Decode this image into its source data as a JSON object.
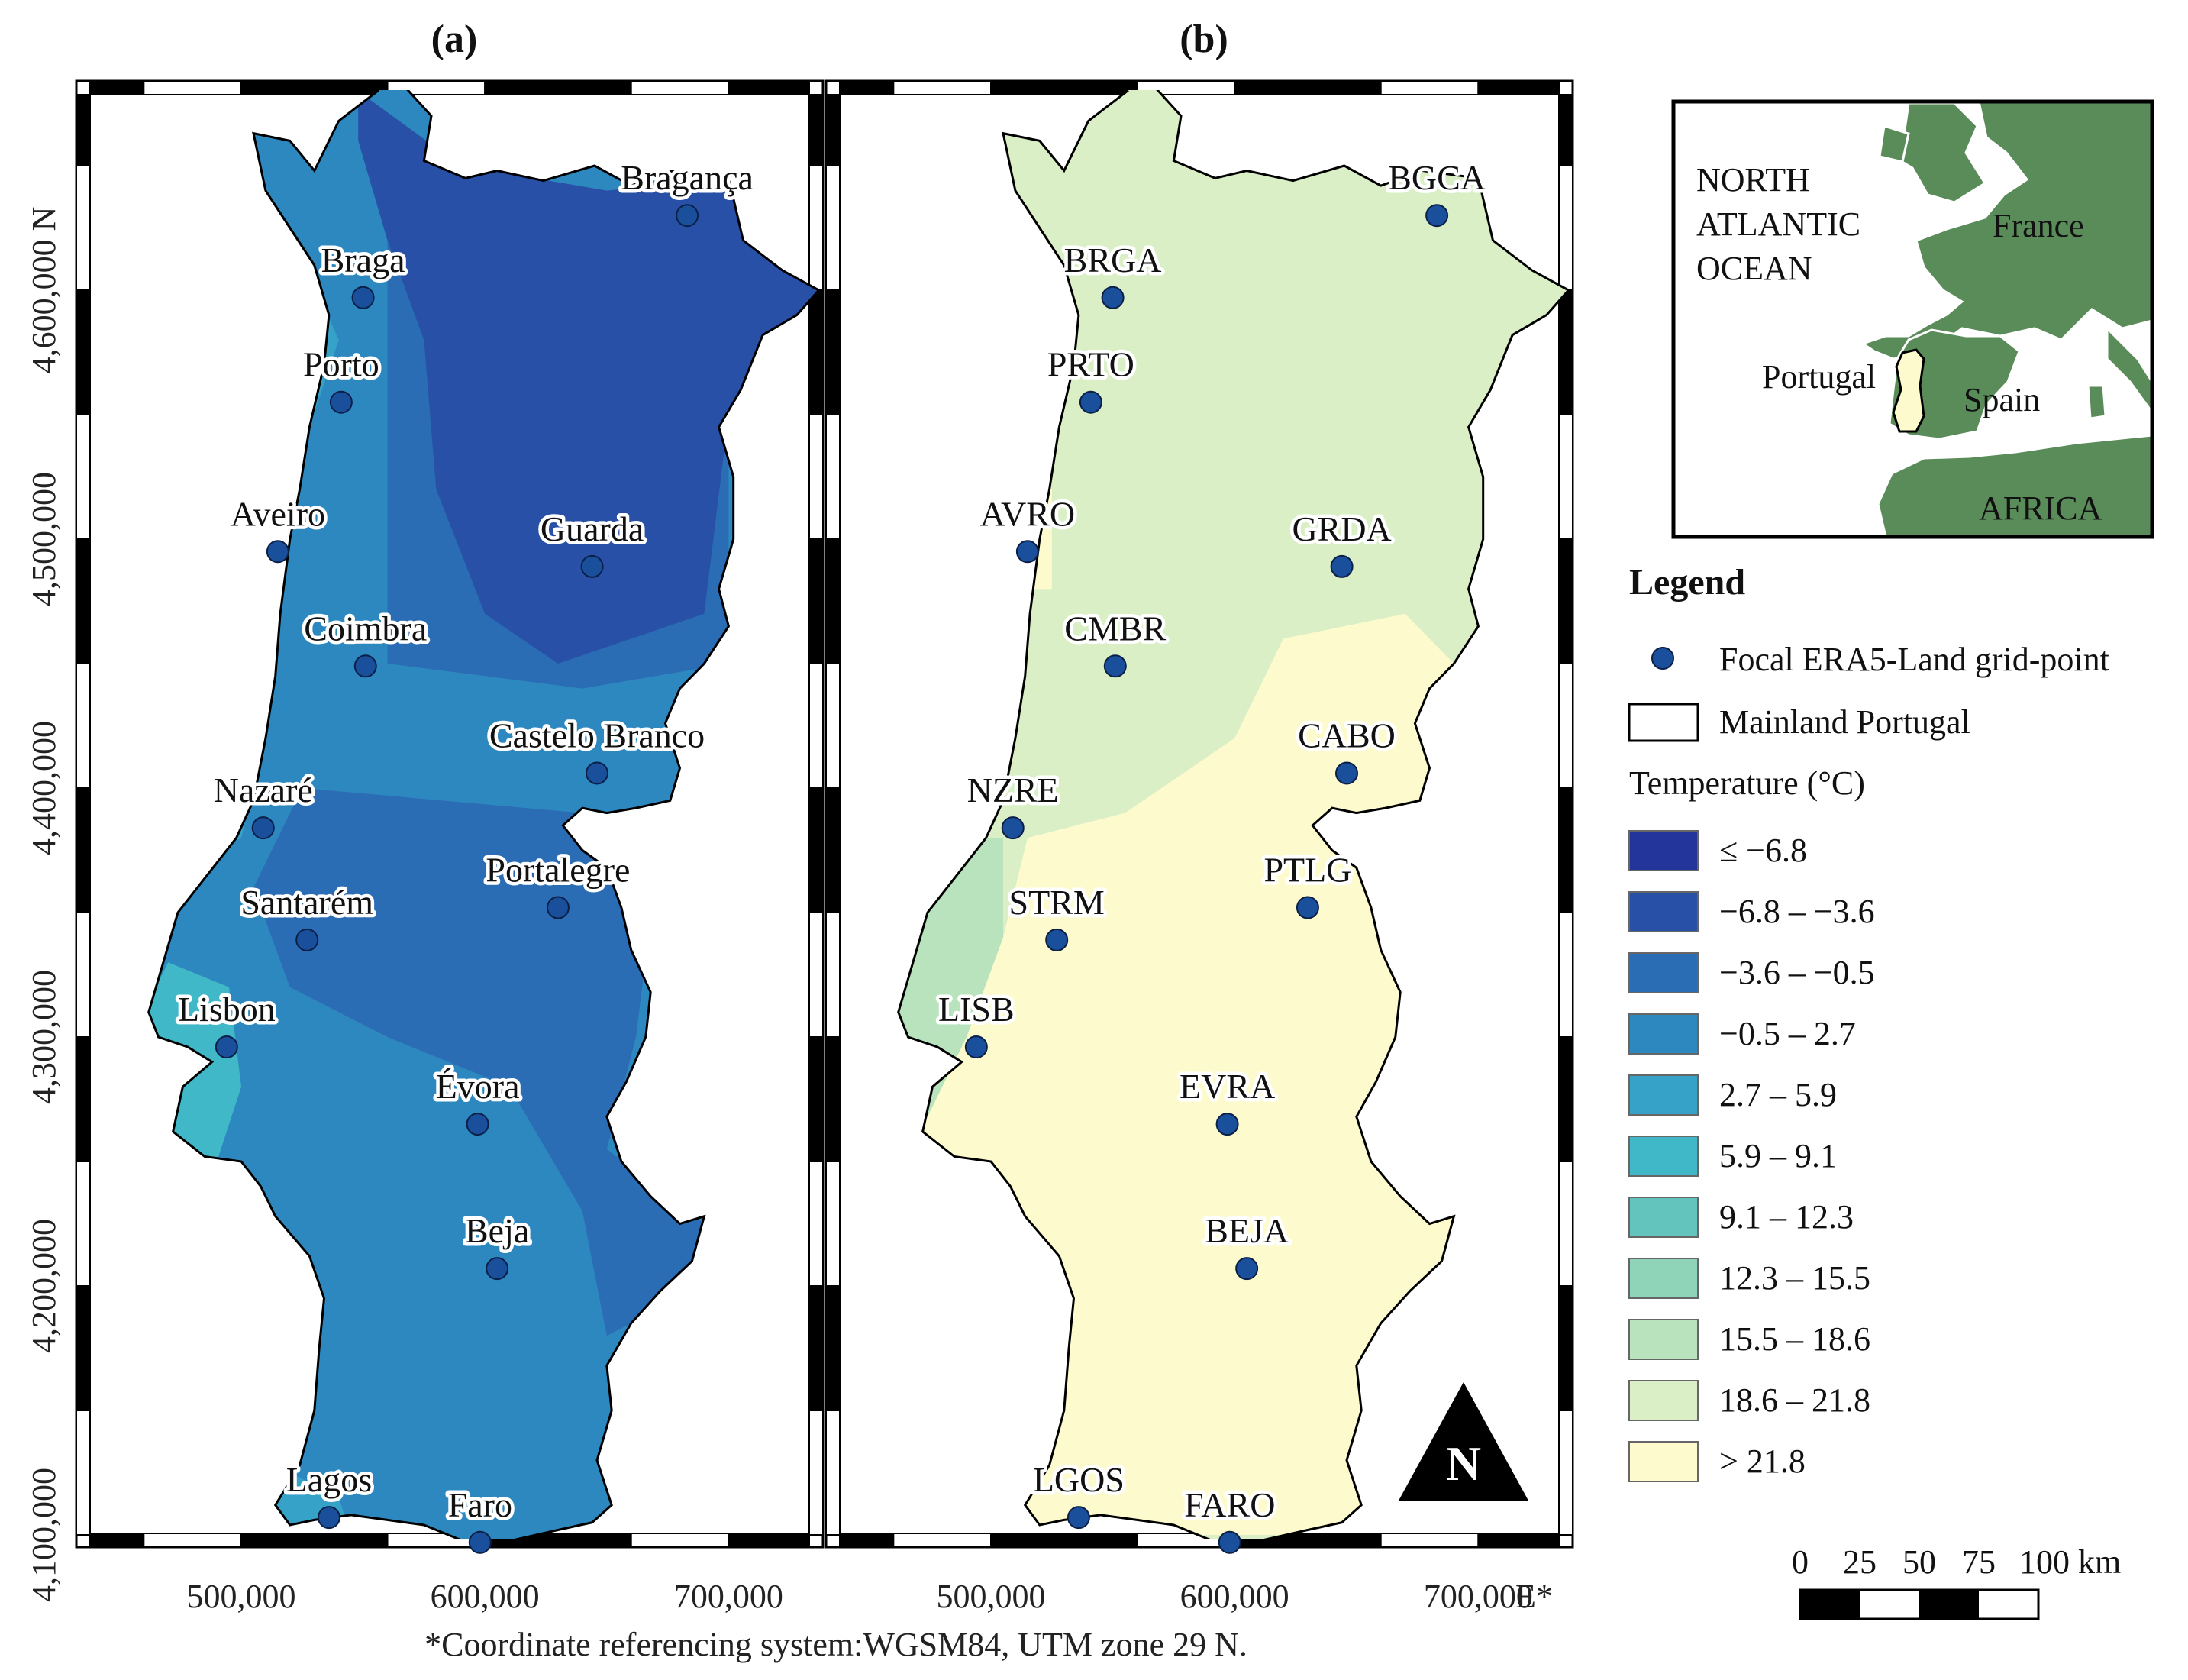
{
  "panels": {
    "a": {
      "title": "(a)",
      "cities": [
        {
          "name": "Bragança",
          "x": 683000,
          "y": 4630000
        },
        {
          "name": "Braga",
          "x": 550000,
          "y": 4597000
        },
        {
          "name": "Porto",
          "x": 541000,
          "y": 4555000
        },
        {
          "name": "Aveiro",
          "x": 515000,
          "y": 4495000
        },
        {
          "name": "Guarda",
          "x": 644000,
          "y": 4489000
        },
        {
          "name": "Coimbra",
          "x": 551000,
          "y": 4449000
        },
        {
          "name": "Castelo Branco",
          "x": 646000,
          "y": 4406000
        },
        {
          "name": "Nazaré",
          "x": 509000,
          "y": 4384000
        },
        {
          "name": "Portalegre",
          "x": 630000,
          "y": 4352000
        },
        {
          "name": "Santarém",
          "x": 527000,
          "y": 4339000
        },
        {
          "name": "Lisbon",
          "x": 494000,
          "y": 4296000
        },
        {
          "name": "Évora",
          "x": 597000,
          "y": 4265000
        },
        {
          "name": "Beja",
          "x": 605000,
          "y": 4207000
        },
        {
          "name": "Lagos",
          "x": 536000,
          "y": 4107000
        },
        {
          "name": "Faro",
          "x": 598000,
          "y": 4097000
        }
      ]
    },
    "b": {
      "title": "(b)",
      "cities": [
        {
          "name": "BGCA",
          "x": 683000,
          "y": 4630000
        },
        {
          "name": "BRGA",
          "x": 550000,
          "y": 4597000
        },
        {
          "name": "PRTO",
          "x": 541000,
          "y": 4555000
        },
        {
          "name": "AVRO",
          "x": 515000,
          "y": 4495000
        },
        {
          "name": "GRDA",
          "x": 644000,
          "y": 4489000
        },
        {
          "name": "CMBR",
          "x": 551000,
          "y": 4449000
        },
        {
          "name": "CABO",
          "x": 646000,
          "y": 4406000
        },
        {
          "name": "NZRE",
          "x": 509000,
          "y": 4384000
        },
        {
          "name": "PTLG",
          "x": 630000,
          "y": 4352000
        },
        {
          "name": "STRM",
          "x": 527000,
          "y": 4339000
        },
        {
          "name": "LISB",
          "x": 494000,
          "y": 4296000
        },
        {
          "name": "EVRA",
          "x": 597000,
          "y": 4265000
        },
        {
          "name": "BEJA",
          "x": 605000,
          "y": 4207000
        },
        {
          "name": "LGOS",
          "x": 536000,
          "y": 4107000
        },
        {
          "name": "FARO",
          "x": 598000,
          "y": 4097000
        }
      ]
    }
  },
  "axes": {
    "x_ticks": [
      500000,
      600000,
      700000
    ],
    "x_tick_labels": [
      "500,000",
      "600,000",
      "700,000"
    ],
    "x_suffix": "E*",
    "y_ticks": [
      4100000,
      4200000,
      4300000,
      4400000,
      4500000,
      4600000
    ],
    "y_tick_labels": [
      "4,100,000",
      "4,200,000",
      "4,300,000",
      "4,400,000",
      "4,500,000",
      "4,600,000 N"
    ]
  },
  "footnote": "*Coordinate referencing system:WGSM84, UTM zone 29 N.",
  "north_arrow": "N",
  "inset": {
    "ocean_label_lines": [
      "NORTH",
      "ATLANTIC",
      "OCEAN"
    ],
    "labels": [
      "France",
      "Portugal",
      "Spain",
      "AFRICA"
    ]
  },
  "legend": {
    "title": "Legend",
    "point_label": "Focal ERA5-Land grid-point",
    "boundary_label": "Mainland Portugal",
    "temperature_title": "Temperature (°C)",
    "classes": [
      {
        "label": "≤ −6.8",
        "color": "#23359a"
      },
      {
        "label": "−6.8 – −3.6",
        "color": "#2850a6"
      },
      {
        "label": "−3.6 – −0.5",
        "color": "#2a6db5"
      },
      {
        "label": "−0.5 – 2.7",
        "color": "#2e88c0"
      },
      {
        "label": "2.7 – 5.9",
        "color": "#36a2c8"
      },
      {
        "label": "5.9 – 9.1",
        "color": "#41b8c7"
      },
      {
        "label": "9.1 – 12.3",
        "color": "#63c4bd"
      },
      {
        "label": "12.3 – 15.5",
        "color": "#8fd3b9"
      },
      {
        "label": "15.5 – 18.6",
        "color": "#b8e3bd"
      },
      {
        "label": "18.6 – 21.8",
        "color": "#daefc6"
      },
      {
        "label": "> 21.8",
        "color": "#fdfbcd"
      }
    ]
  },
  "scale_bar": {
    "labels": [
      "0",
      "25",
      "50",
      "75",
      "100 km"
    ]
  },
  "colors": {
    "point_fill": "#1a4f9c",
    "inset_land": "#5a8c5a",
    "inset_ocean": "#ffffff"
  }
}
